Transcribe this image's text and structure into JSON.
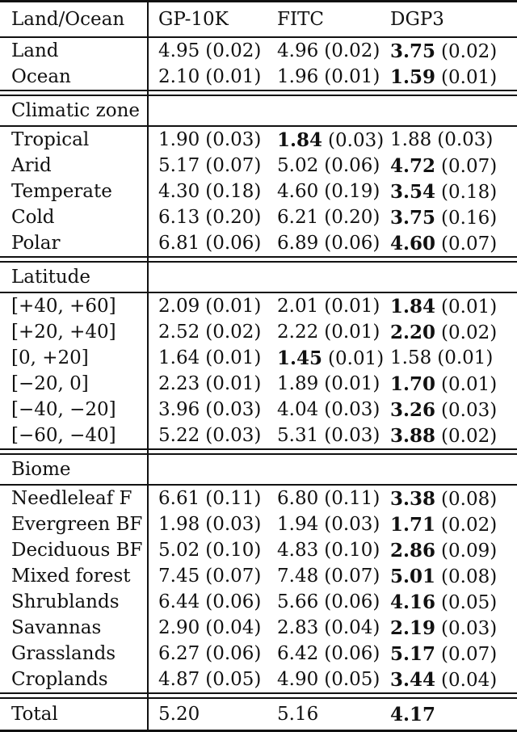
{
  "table": {
    "header": {
      "label_col": "Land/Ocean",
      "cols": [
        "GP-10K",
        "FITC",
        "DGP3"
      ]
    },
    "sections": [
      {
        "name": "land-ocean",
        "rows": [
          {
            "label": "Land",
            "cells": [
              {
                "v": "4.95",
                "s": "(0.02)",
                "bold": false
              },
              {
                "v": "4.96",
                "s": "(0.02)",
                "bold": false
              },
              {
                "v": "3.75",
                "s": "(0.02)",
                "bold": true
              }
            ]
          },
          {
            "label": "Ocean",
            "cells": [
              {
                "v": "2.10",
                "s": "(0.01)",
                "bold": false
              },
              {
                "v": "1.96",
                "s": "(0.01)",
                "bold": false
              },
              {
                "v": "1.59",
                "s": "(0.01)",
                "bold": true
              }
            ]
          }
        ]
      },
      {
        "title": "Climatic zone",
        "rows": [
          {
            "label": "Tropical",
            "cells": [
              {
                "v": "1.90",
                "s": "(0.03)",
                "bold": false
              },
              {
                "v": "1.84",
                "s": "(0.03)",
                "bold": true
              },
              {
                "v": "1.88",
                "s": "(0.03)",
                "bold": false
              }
            ]
          },
          {
            "label": "Arid",
            "cells": [
              {
                "v": "5.17",
                "s": "(0.07)",
                "bold": false
              },
              {
                "v": "5.02",
                "s": "(0.06)",
                "bold": false
              },
              {
                "v": "4.72",
                "s": "(0.07)",
                "bold": true
              }
            ]
          },
          {
            "label": "Temperate",
            "cells": [
              {
                "v": "4.30",
                "s": "(0.18)",
                "bold": false
              },
              {
                "v": "4.60",
                "s": "(0.19)",
                "bold": false
              },
              {
                "v": "3.54",
                "s": "(0.18)",
                "bold": true
              }
            ]
          },
          {
            "label": "Cold",
            "cells": [
              {
                "v": "6.13",
                "s": "(0.20)",
                "bold": false
              },
              {
                "v": "6.21",
                "s": "(0.20)",
                "bold": false
              },
              {
                "v": "3.75",
                "s": "(0.16)",
                "bold": true
              }
            ]
          },
          {
            "label": "Polar",
            "cells": [
              {
                "v": "6.81",
                "s": "(0.06)",
                "bold": false
              },
              {
                "v": "6.89",
                "s": "(0.06)",
                "bold": false
              },
              {
                "v": "4.60",
                "s": "(0.07)",
                "bold": true
              }
            ]
          }
        ]
      },
      {
        "title": "Latitude",
        "rows": [
          {
            "label": "[+40, +60]",
            "cells": [
              {
                "v": "2.09",
                "s": "(0.01)",
                "bold": false
              },
              {
                "v": "2.01",
                "s": "(0.01)",
                "bold": false
              },
              {
                "v": "1.84",
                "s": "(0.01)",
                "bold": true
              }
            ]
          },
          {
            "label": "[+20, +40]",
            "cells": [
              {
                "v": "2.52",
                "s": "(0.02)",
                "bold": false
              },
              {
                "v": "2.22",
                "s": "(0.01)",
                "bold": false
              },
              {
                "v": "2.20",
                "s": "(0.02)",
                "bold": true
              }
            ]
          },
          {
            "label": "[0, +20]",
            "cells": [
              {
                "v": "1.64",
                "s": "(0.01)",
                "bold": false
              },
              {
                "v": "1.45",
                "s": "(0.01)",
                "bold": true
              },
              {
                "v": "1.58",
                "s": "(0.01)",
                "bold": false
              }
            ]
          },
          {
            "label": "[−20, 0]",
            "cells": [
              {
                "v": "2.23",
                "s": "(0.01)",
                "bold": false
              },
              {
                "v": "1.89",
                "s": "(0.01)",
                "bold": false
              },
              {
                "v": "1.70",
                "s": "(0.01)",
                "bold": true
              }
            ]
          },
          {
            "label": "[−40, −20]",
            "cells": [
              {
                "v": "3.96",
                "s": "(0.03)",
                "bold": false
              },
              {
                "v": "4.04",
                "s": "(0.03)",
                "bold": false
              },
              {
                "v": "3.26",
                "s": "(0.03)",
                "bold": true
              }
            ]
          },
          {
            "label": "[−60, −40]",
            "cells": [
              {
                "v": "5.22",
                "s": "(0.03)",
                "bold": false
              },
              {
                "v": "5.31",
                "s": "(0.03)",
                "bold": false
              },
              {
                "v": "3.88",
                "s": "(0.02)",
                "bold": true
              }
            ]
          }
        ]
      },
      {
        "title": "Biome",
        "rows": [
          {
            "label": "Needleleaf F",
            "cells": [
              {
                "v": "6.61",
                "s": "(0.11)",
                "bold": false
              },
              {
                "v": "6.80",
                "s": "(0.11)",
                "bold": false
              },
              {
                "v": "3.38",
                "s": "(0.08)",
                "bold": true
              }
            ]
          },
          {
            "label": "Evergreen BF",
            "cells": [
              {
                "v": "1.98",
                "s": "(0.03)",
                "bold": false
              },
              {
                "v": "1.94",
                "s": "(0.03)",
                "bold": false
              },
              {
                "v": "1.71",
                "s": "(0.02)",
                "bold": true
              }
            ]
          },
          {
            "label": "Deciduous BF",
            "cells": [
              {
                "v": "5.02",
                "s": "(0.10)",
                "bold": false
              },
              {
                "v": "4.83",
                "s": "(0.10)",
                "bold": false
              },
              {
                "v": "2.86",
                "s": "(0.09)",
                "bold": true
              }
            ]
          },
          {
            "label": "Mixed forest",
            "cells": [
              {
                "v": "7.45",
                "s": "(0.07)",
                "bold": false
              },
              {
                "v": "7.48",
                "s": "(0.07)",
                "bold": false
              },
              {
                "v": "5.01",
                "s": "(0.08)",
                "bold": true
              }
            ]
          },
          {
            "label": "Shrublands",
            "cells": [
              {
                "v": "6.44",
                "s": "(0.06)",
                "bold": false
              },
              {
                "v": "5.66",
                "s": "(0.06)",
                "bold": false
              },
              {
                "v": "4.16",
                "s": "(0.05)",
                "bold": true
              }
            ]
          },
          {
            "label": "Savannas",
            "cells": [
              {
                "v": "2.90",
                "s": "(0.04)",
                "bold": false
              },
              {
                "v": "2.83",
                "s": "(0.04)",
                "bold": false
              },
              {
                "v": "2.19",
                "s": "(0.03)",
                "bold": true
              }
            ]
          },
          {
            "label": "Grasslands",
            "cells": [
              {
                "v": "6.27",
                "s": "(0.06)",
                "bold": false
              },
              {
                "v": "6.42",
                "s": "(0.06)",
                "bold": false
              },
              {
                "v": "5.17",
                "s": "(0.07)",
                "bold": true
              }
            ]
          },
          {
            "label": "Croplands",
            "cells": [
              {
                "v": "4.87",
                "s": "(0.05)",
                "bold": false
              },
              {
                "v": "4.90",
                "s": "(0.05)",
                "bold": false
              },
              {
                "v": "3.44",
                "s": "(0.04)",
                "bold": true
              }
            ]
          }
        ]
      }
    ],
    "total": {
      "label": "Total",
      "cells": [
        {
          "v": "5.20",
          "bold": false
        },
        {
          "v": "5.16",
          "bold": false
        },
        {
          "v": "4.17",
          "bold": true
        }
      ]
    }
  }
}
